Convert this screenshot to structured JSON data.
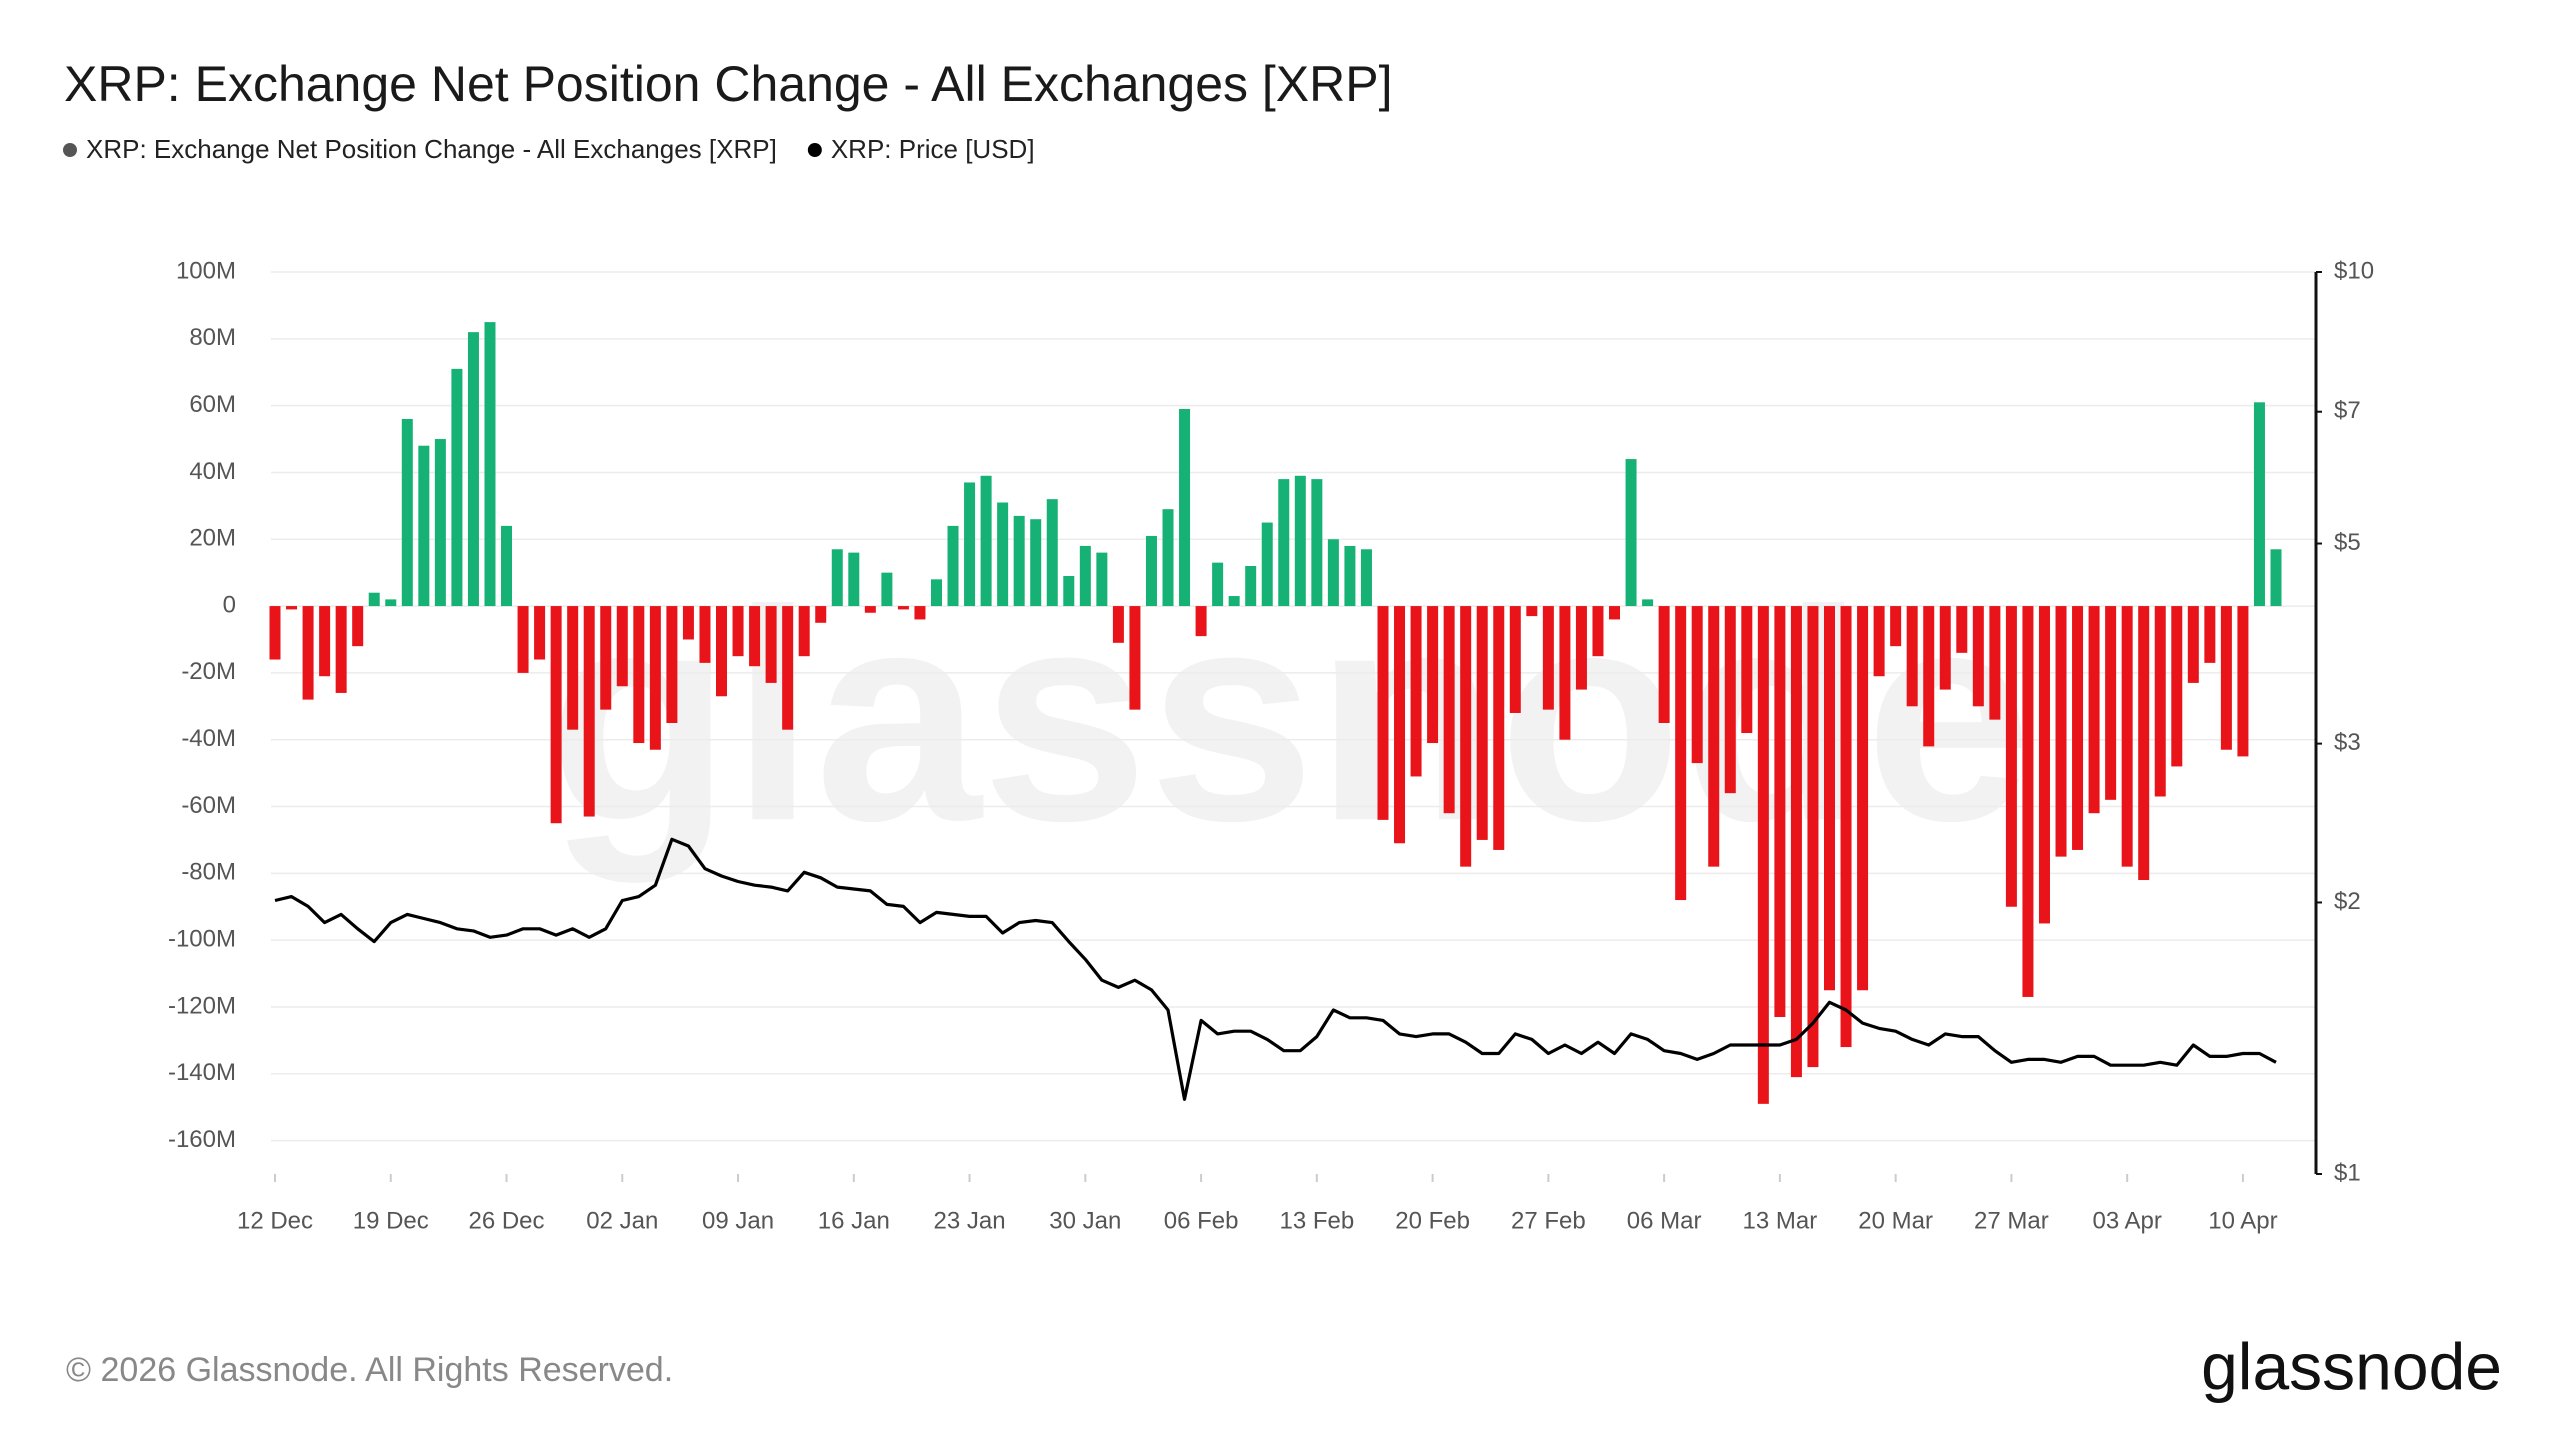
{
  "chart_data": {
    "type": "bar",
    "title": "XRP: Exchange Net Position Change - All Exchanges [XRP]",
    "copyright": "© 2026 Glassnode. All Rights Reserved.",
    "brand": "glassnode",
    "categories": [
      "12 Dec",
      null,
      null,
      null,
      null,
      null,
      null,
      "19 Dec",
      null,
      null,
      null,
      null,
      null,
      null,
      "26 Dec",
      null,
      null,
      null,
      null,
      null,
      null,
      "02 Jan",
      null,
      null,
      null,
      null,
      null,
      null,
      "09 Jan",
      null,
      null,
      null,
      null,
      null,
      null,
      "16 Jan",
      null,
      null,
      null,
      null,
      null,
      null,
      "23 Jan",
      null,
      null,
      null,
      null,
      null,
      null,
      "30 Jan",
      null,
      null,
      null,
      null,
      null,
      null,
      "06 Feb",
      null,
      null,
      null,
      null,
      null,
      null,
      "13 Feb",
      null,
      null,
      null,
      null,
      null,
      null,
      "20 Feb",
      null,
      null,
      null,
      null,
      null,
      null,
      "27 Feb",
      null,
      null,
      null,
      null,
      null,
      null,
      "06 Mar",
      null,
      null,
      null,
      null,
      null,
      null,
      "13 Mar",
      null,
      null,
      null,
      null,
      null,
      null,
      "20 Mar",
      null,
      null,
      null,
      null,
      null,
      null,
      "27 Mar",
      null,
      null,
      null,
      null,
      null,
      null,
      "03 Apr",
      null,
      null,
      null,
      null,
      null,
      null,
      "10 Apr",
      null,
      null
    ],
    "series": [
      {
        "name": "XRP: Exchange Net Position Change - All Exchanges [XRP]",
        "type": "bar",
        "color": "#555555",
        "positive_color": "#16b174",
        "negative_color": "#e8141a",
        "values": [
          -16,
          -1,
          -28,
          -21,
          -26,
          -12,
          4,
          2,
          56,
          48,
          50,
          71,
          82,
          85,
          24,
          -20,
          -16,
          -65,
          -37,
          -63,
          -31,
          -24,
          -41,
          -43,
          -35,
          -10,
          -17,
          -27,
          -15,
          -18,
          -23,
          -37,
          -15,
          -5,
          17,
          16,
          -2,
          10,
          -1,
          -4,
          8,
          24,
          37,
          39,
          31,
          27,
          26,
          32,
          9,
          18,
          16,
          -11,
          -31,
          21,
          29,
          59,
          -9,
          13,
          3,
          12,
          25,
          38,
          39,
          38,
          20,
          18,
          17,
          -64,
          -71,
          -51,
          -41,
          -62,
          -78,
          -70,
          -73,
          -32,
          -3,
          -31,
          -40,
          -25,
          -15,
          -4,
          44,
          2,
          -35,
          -88,
          -47,
          -78,
          -56,
          -38,
          -149,
          -123,
          -141,
          -138,
          -115,
          -132,
          -115,
          -21,
          -12,
          -30,
          -42,
          -25,
          -14,
          -30,
          -34,
          -90,
          -117,
          -95,
          -75,
          -73,
          -62,
          -58,
          -78,
          -82,
          -57,
          -48,
          -23,
          -17,
          -43,
          -45,
          61,
          17
        ]
      },
      {
        "name": "XRP: Price [USD]",
        "type": "line",
        "axis": "y2",
        "color": "#000000",
        "values": [
          2.01,
          2.03,
          1.98,
          1.9,
          1.94,
          1.87,
          1.81,
          1.9,
          1.94,
          1.92,
          1.9,
          1.87,
          1.86,
          1.83,
          1.84,
          1.87,
          1.87,
          1.84,
          1.87,
          1.83,
          1.87,
          2.01,
          2.03,
          2.09,
          2.35,
          2.31,
          2.18,
          2.14,
          2.11,
          2.09,
          2.08,
          2.06,
          2.16,
          2.13,
          2.08,
          2.07,
          2.06,
          1.99,
          1.98,
          1.9,
          1.95,
          1.94,
          1.93,
          1.93,
          1.85,
          1.9,
          1.91,
          1.9,
          1.81,
          1.73,
          1.64,
          1.61,
          1.64,
          1.6,
          1.52,
          1.21,
          1.48,
          1.43,
          1.44,
          1.44,
          1.41,
          1.37,
          1.37,
          1.42,
          1.52,
          1.49,
          1.49,
          1.48,
          1.43,
          1.42,
          1.43,
          1.43,
          1.4,
          1.36,
          1.36,
          1.43,
          1.41,
          1.36,
          1.39,
          1.36,
          1.4,
          1.36,
          1.43,
          1.41,
          1.37,
          1.36,
          1.34,
          1.36,
          1.39,
          1.39,
          1.39,
          1.39,
          1.41,
          1.47,
          1.55,
          1.52,
          1.47,
          1.45,
          1.44,
          1.41,
          1.39,
          1.43,
          1.42,
          1.42,
          1.37,
          1.33,
          1.34,
          1.34,
          1.33,
          1.35,
          1.35,
          1.32,
          1.32,
          1.32,
          1.33,
          1.32,
          1.39,
          1.35,
          1.35,
          1.36,
          1.36,
          1.33
        ]
      }
    ],
    "ylim": [
      -170,
      100
    ],
    "yticks": [
      {
        "value": -160,
        "label": "-160M"
      },
      {
        "value": -140,
        "label": "-140M"
      },
      {
        "value": -120,
        "label": "-120M"
      },
      {
        "value": -100,
        "label": "-100M"
      },
      {
        "value": -80,
        "label": "-80M"
      },
      {
        "value": -60,
        "label": "-60M"
      },
      {
        "value": -40,
        "label": "-40M"
      },
      {
        "value": -20,
        "label": "-20M"
      },
      0,
      {
        "value": 20,
        "label": "20M"
      },
      {
        "value": 40,
        "label": "40M"
      },
      {
        "value": 60,
        "label": "60M"
      },
      {
        "value": 80,
        "label": "80M"
      },
      {
        "value": 100,
        "label": "100M"
      }
    ],
    "y2lim": [
      1,
      10
    ],
    "y2scale": "log",
    "y2ticks": [
      {
        "value": 1,
        "label": "$1"
      },
      {
        "value": 2,
        "label": "$2"
      },
      {
        "value": 3,
        "label": "$3"
      },
      {
        "value": 5,
        "label": "$5"
      },
      {
        "value": 7,
        "label": "$7"
      },
      {
        "value": 10,
        "label": "$10"
      }
    ],
    "grid": true,
    "legend": "top-left"
  }
}
